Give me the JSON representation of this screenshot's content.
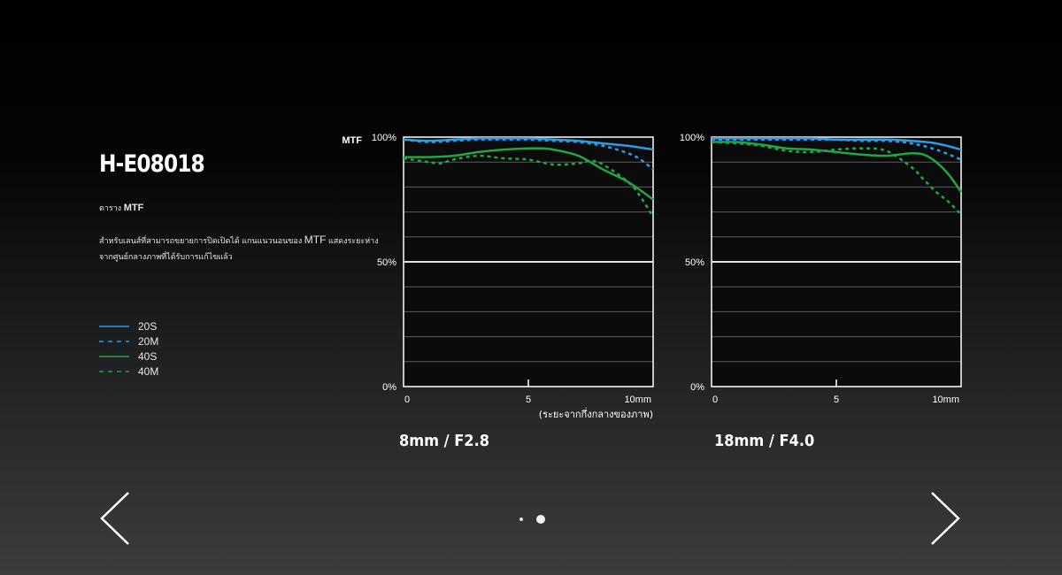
{
  "product": {
    "model": "H-E08018",
    "subtitle_prefix": "ตาราง",
    "subtitle_bold": "MTF",
    "description_before": "สำหรับเลนส์ที่สามารถขยายการปิดเปิดได้ แกนแนวนอนของ",
    "description_bold": "MTF",
    "description_after": "แสดงระยะห่างจากศูนย์กลางภาพที่ได้รับการแก้ไขแล้ว"
  },
  "legend": [
    {
      "label": "20S",
      "color": "#2a9de6",
      "style": "solid"
    },
    {
      "label": "20M",
      "color": "#2a9de6",
      "style": "dashed"
    },
    {
      "label": "40S",
      "color": "#23a445",
      "style": "solid"
    },
    {
      "label": "40M",
      "color": "#23a445",
      "style": "dashed"
    }
  ],
  "chart_data": [
    {
      "type": "line",
      "title": "8mm / F2.8",
      "ylabel": "MTF",
      "xlabel": "(ระยะจากกึ่งกลางของภาพ)",
      "x_tick_labels": [
        "0",
        "5",
        "10mm"
      ],
      "y_tick_labels": [
        "100%",
        "50%",
        "0%"
      ],
      "xlim": [
        0,
        10
      ],
      "ylim": [
        0,
        100
      ],
      "grid": true,
      "series": [
        {
          "name": "20S",
          "color": "#2a9de6",
          "style": "solid",
          "x": [
            0,
            1,
            2,
            3,
            4,
            5,
            6,
            7,
            8,
            9,
            10
          ],
          "y": [
            99,
            98.5,
            99,
            99.5,
            99.5,
            99.5,
            99,
            98.5,
            97.5,
            96.5,
            95
          ]
        },
        {
          "name": "20M",
          "color": "#2a9de6",
          "style": "dashed",
          "x": [
            0,
            1,
            2,
            3,
            4,
            5,
            6,
            7,
            8,
            9,
            9.5,
            10
          ],
          "y": [
            99,
            98,
            98.5,
            99,
            99,
            99,
            98.5,
            98,
            96.5,
            93.5,
            91,
            87
          ]
        },
        {
          "name": "40S",
          "color": "#23a445",
          "style": "solid",
          "x": [
            0,
            1,
            2,
            3,
            4,
            5,
            5.5,
            6,
            7,
            8,
            9,
            10
          ],
          "y": [
            92,
            92,
            92.5,
            94,
            95,
            95.5,
            95.5,
            95,
            92.5,
            87,
            82,
            75
          ]
        },
        {
          "name": "40M",
          "color": "#23a445",
          "style": "dashed",
          "x": [
            0,
            1,
            1.5,
            2,
            3,
            4,
            5,
            6,
            7,
            7.5,
            8,
            9,
            9.5,
            10
          ],
          "y": [
            91.5,
            90,
            89.5,
            91,
            92.5,
            91.5,
            91,
            89,
            89.5,
            90.5,
            89,
            82,
            76,
            68
          ]
        }
      ]
    },
    {
      "type": "line",
      "title": "18mm / F4.0",
      "ylabel": "",
      "xlabel": "",
      "x_tick_labels": [
        "0",
        "5",
        "10mm"
      ],
      "y_tick_labels": [
        "100%",
        "50%",
        "0%"
      ],
      "xlim": [
        0,
        10
      ],
      "ylim": [
        0,
        100
      ],
      "grid": true,
      "series": [
        {
          "name": "20S",
          "color": "#2a9de6",
          "style": "solid",
          "x": [
            0,
            1,
            2,
            3,
            4,
            5,
            6,
            7,
            8,
            9,
            10
          ],
          "y": [
            99.5,
            99.5,
            99.5,
            99.5,
            99.5,
            99,
            99,
            99,
            98.5,
            97.5,
            95
          ]
        },
        {
          "name": "20M",
          "color": "#2a9de6",
          "style": "dashed",
          "x": [
            0,
            1,
            2,
            3,
            4,
            5,
            6,
            7,
            8,
            9,
            10
          ],
          "y": [
            99,
            99,
            99,
            99,
            99,
            99,
            98.5,
            98.5,
            97.5,
            95,
            91
          ]
        },
        {
          "name": "40S",
          "color": "#23a445",
          "style": "solid",
          "x": [
            0,
            1,
            2,
            3,
            4,
            5,
            6,
            7,
            7.5,
            8,
            8.5,
            9,
            9.5,
            10
          ],
          "y": [
            98,
            98,
            97,
            95.5,
            95,
            94,
            93,
            92.5,
            93,
            93.5,
            93,
            90,
            85,
            78
          ]
        },
        {
          "name": "40M",
          "color": "#23a445",
          "style": "dashed",
          "x": [
            0,
            1,
            2,
            3,
            4,
            5,
            6,
            7,
            8,
            8.5,
            9,
            9.5,
            10
          ],
          "y": [
            98,
            97.5,
            96.5,
            94.5,
            94,
            95,
            95.5,
            94.5,
            88,
            83,
            78,
            74,
            69
          ]
        }
      ]
    }
  ],
  "navigation": {
    "prev_label": "previous",
    "next_label": "next",
    "page_count": 2,
    "active_page": 2
  }
}
